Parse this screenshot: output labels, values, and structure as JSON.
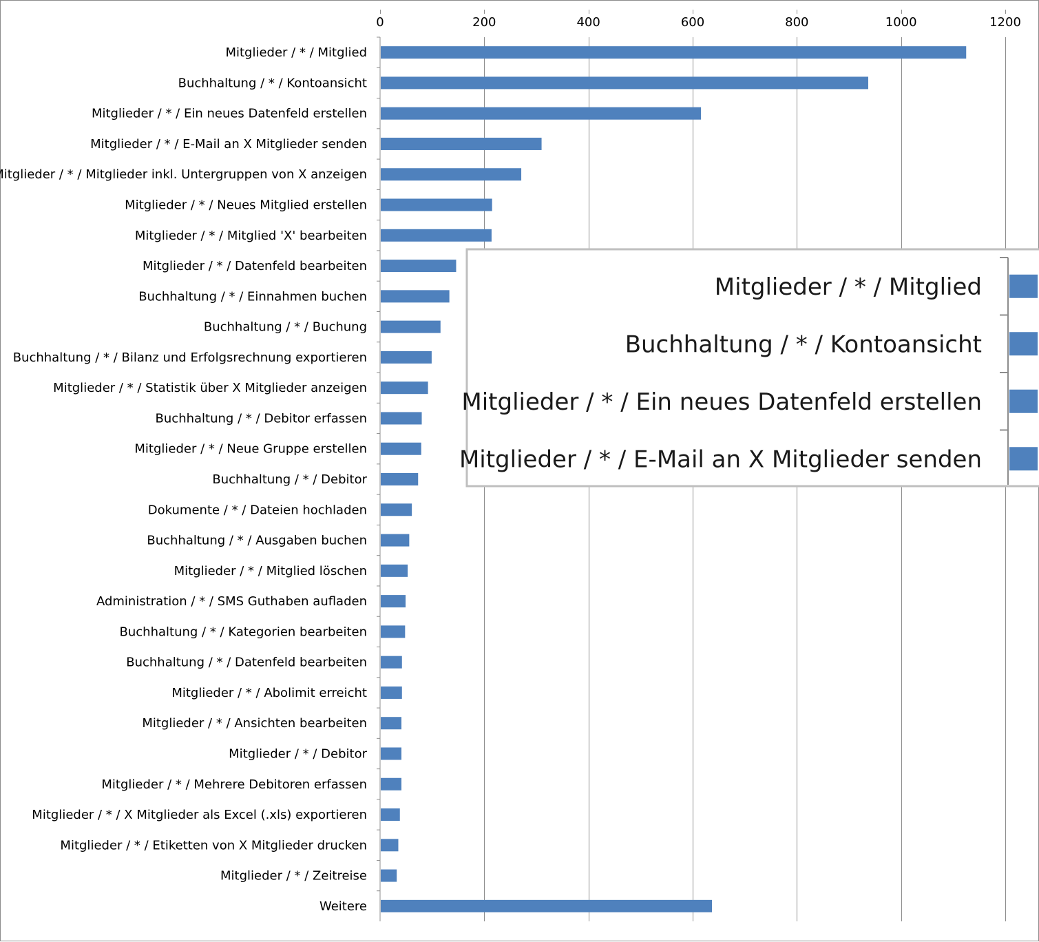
{
  "chart_data": {
    "type": "bar",
    "orientation": "horizontal",
    "title": "",
    "xlabel": "",
    "ylabel": "",
    "xlim": [
      0,
      1200
    ],
    "xticks": [
      0,
      200,
      400,
      600,
      800,
      1000,
      1200
    ],
    "x_axis_position": "top",
    "grid": true,
    "legend": "none",
    "bar_color": "#4f81bd",
    "categories": [
      "Mitglieder / * / Mitglied",
      "Buchhaltung / * / Kontoansicht",
      "Mitglieder / * / Ein neues Datenfeld erstellen",
      "Mitglieder / * / E-Mail an X Mitglieder senden",
      "Mitglieder / * / Mitglieder inkl. Untergruppen von X anzeigen",
      "Mitglieder / * / Neues Mitglied erstellen",
      "Mitglieder / * / Mitglied 'X' bearbeiten",
      "Mitglieder / * / Datenfeld bearbeiten",
      "Buchhaltung / * / Einnahmen buchen",
      "Buchhaltung / * / Buchung",
      "Buchhaltung / * / Bilanz und Erfolgsrechnung exportieren",
      "Mitglieder / * / Statistik über X Mitglieder anzeigen",
      "Buchhaltung / * / Debitor erfassen",
      "Mitglieder / * / Neue Gruppe erstellen",
      "Buchhaltung / * / Debitor",
      "Dokumente / * / Dateien hochladen",
      "Buchhaltung / * / Ausgaben buchen",
      "Mitglieder / * / Mitglied löschen",
      "Administration / * / SMS Guthaben aufladen",
      "Buchhaltung / * / Kategorien bearbeiten",
      "Buchhaltung / * / Datenfeld bearbeiten",
      "Mitglieder / * / Abolimit erreicht",
      "Mitglieder / * / Ansichten bearbeiten",
      "Mitglieder / * / Debitor",
      "Mitglieder / * / Mehrere Debitoren erfassen",
      "Mitglieder / * / X Mitglieder als Excel (.xls) exportieren",
      "Mitglieder / * / Etiketten von X Mitglieder drucken",
      "Mitglieder / * / Zeitreise",
      "Weitere"
    ],
    "values": [
      1125,
      937,
      616,
      310,
      271,
      215,
      214,
      146,
      133,
      116,
      99,
      92,
      80,
      79,
      73,
      61,
      56,
      53,
      49,
      48,
      42,
      42,
      41,
      41,
      41,
      38,
      35,
      32,
      637
    ],
    "zoom_inset": {
      "categories": [
        "Mitglieder / * / Mitglied",
        "Buchhaltung / * / Kontoansicht",
        "Mitglieder / * / Ein neues Datenfeld erstellen",
        "Mitglieder / * / E-Mail an X Mitglieder senden"
      ]
    }
  }
}
